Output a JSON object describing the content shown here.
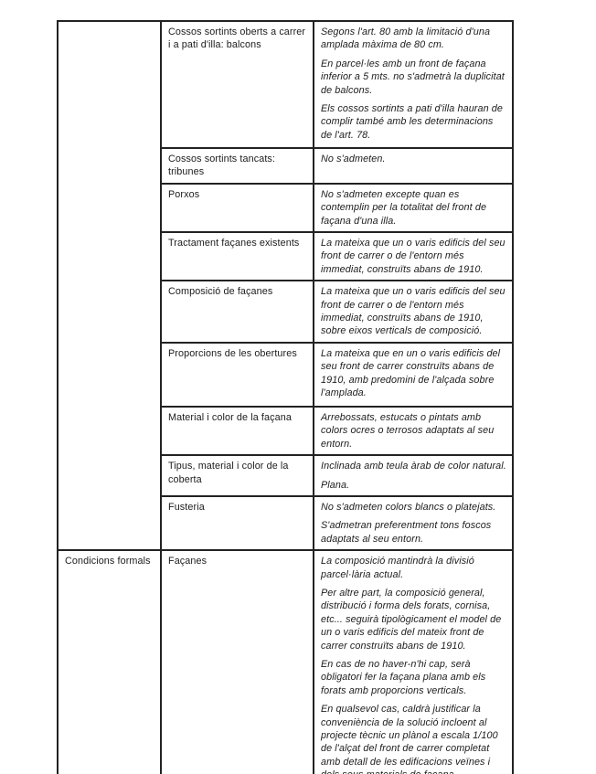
{
  "document": {
    "kind": "scanned-regulations-table",
    "language": "ca",
    "colors": {
      "background": "#ffffff",
      "text": "#1c1c1c",
      "border": "#222222"
    },
    "rows": [
      {
        "category": "",
        "label": "Cossos sortints oberts a carrer i a pati d'illa: balcons",
        "paragraphs": [
          "Segons l'art. 80 amb la limitació d'una amplada màxima de 80 cm.",
          "En parcel·les amb un front de façana inferior a 5 mts. no s'admetrà la duplicitat de balcons.",
          "Els cossos sortints a pati d'illa hauran de complir també amb les determinacions de l'art. 78."
        ]
      },
      {
        "label": "Cossos sortints tancats: tribunes",
        "paragraphs": [
          "No s'admeten."
        ]
      },
      {
        "label": "Porxos",
        "paragraphs": [
          "No s'admeten excepte quan es contemplin per la totalitat del front de façana d'una illa."
        ]
      },
      {
        "label": "Tractament façanes existents",
        "paragraphs": [
          "La mateixa que un o varis edificis del seu front de carrer o de l'entorn més immediat, construïts abans de 1910."
        ]
      },
      {
        "label": "Composició de façanes",
        "paragraphs": [
          "La mateixa que un o varis edificis del seu front de carrer o de l'entorn més immediat, construïts abans de 1910, sobre eixos verticals de composició."
        ]
      },
      {
        "label": "Proporcions de les obertures",
        "paragraphs": [
          "La mateixa que en un o varis edificis del seu front de carrer construïts abans de 1910, amb predomini de l'alçada sobre l'amplada."
        ]
      },
      {
        "label": "Material i color de la façana",
        "paragraphs": [
          "Arrebossats, estucats o pintats amb colors ocres o terrosos adaptats al seu entorn."
        ]
      },
      {
        "label": "Tipus, material i color de la coberta",
        "paragraphs": [
          "Inclinada amb teula àrab de color natural.",
          "Plana."
        ]
      },
      {
        "label": "Fusteria",
        "paragraphs": [
          "No s'admeten colors blancs o platejats.",
          "S'admetran preferentment tons foscos adaptats al seu entorn."
        ]
      },
      {
        "category": "Condicions formals",
        "label": "Façanes",
        "paragraphs": [
          "La composició mantindrà la divisió parcel·lària actual.",
          "Per altre part, la composició general, distribució i forma dels forats, cornisa, etc... seguirà tipològicament el model de un o varis edificis del mateix front de carrer construïts abans de 1910.",
          "En cas de no haver-n'hi cap, serà obligatori fer la façana plana amb els forats amb proporcions verticals.",
          "En qualsevol cas, caldrà justificar la conveniència de la solució incloent al projecte tècnic un plànol a escala 1/100 de l'alçat del front de carrer completat amb detall de les edificacions veïnes i dels seus materials de façana."
        ]
      }
    ]
  }
}
